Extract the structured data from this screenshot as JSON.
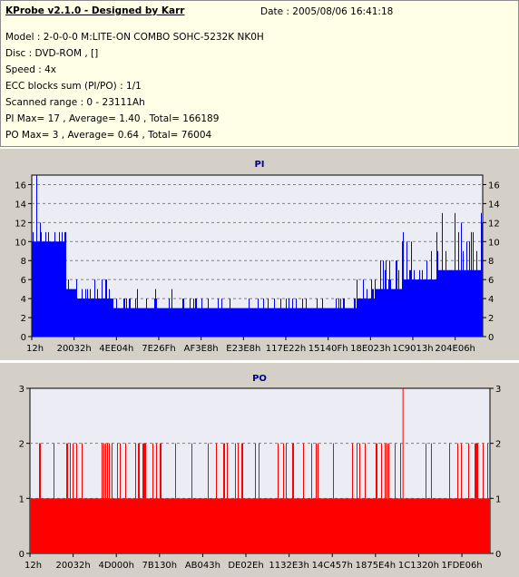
{
  "info": {
    "title": "KProbe v2.1.0 - Designed by Karr",
    "date": "Date : 2005/08/06 16:41:18",
    "lines": [
      "Model : 2-0-0-0 M:LITE-ON COMBO SOHC-5232K NK0H",
      "Disc : DVD-ROM ,  []",
      "Speed : 4x",
      "ECC blocks sum (PI/PO) : 1/1",
      "Scanned range : 0 - 23111Ah",
      "PI Max= 17 , Average= 1.40 , Total= 166189",
      "PO Max= 3 , Average= 0.64 , Total= 76004"
    ]
  },
  "colors": {
    "pi": "#0000ff",
    "po": "#ff0000",
    "grid": "#808080",
    "plot_bg": "#ececf4",
    "panel_bg": "#d4d0c8"
  },
  "chart_data": [
    {
      "type": "area",
      "title": "PI",
      "ylim": [
        0,
        17
      ],
      "yticks": [
        0,
        2,
        4,
        6,
        8,
        10,
        12,
        14,
        16
      ],
      "xticks": [
        "12h",
        "20032h",
        "4EE04h",
        "7E26Fh",
        "AF3E8h",
        "E23E8h",
        "117E22h",
        "15140Fh",
        "18E023h",
        "1C9013h",
        "204E06h"
      ],
      "x_range": [
        "12h",
        "23111Ah"
      ],
      "segments": [
        {
          "from": 0.0,
          "to": 0.075,
          "base": 10,
          "peak": 12,
          "max": 17
        },
        {
          "from": 0.075,
          "to": 0.09,
          "base": 5,
          "peak": 7
        },
        {
          "from": 0.09,
          "to": 0.18,
          "base": 4,
          "peak": 6
        },
        {
          "from": 0.18,
          "to": 0.32,
          "base": 3,
          "peak": 5
        },
        {
          "from": 0.32,
          "to": 0.72,
          "base": 3,
          "peak": 4
        },
        {
          "from": 0.72,
          "to": 0.76,
          "base": 4,
          "peak": 6
        },
        {
          "from": 0.76,
          "to": 0.82,
          "base": 5,
          "peak": 9
        },
        {
          "from": 0.82,
          "to": 0.9,
          "base": 6,
          "peak": 11
        },
        {
          "from": 0.9,
          "to": 1.0,
          "base": 7,
          "peak": 13
        }
      ],
      "grid": true
    },
    {
      "type": "area",
      "title": "PO",
      "ylim": [
        0,
        3
      ],
      "yticks": [
        0,
        1,
        2,
        3
      ],
      "xticks": [
        "12h",
        "20032h",
        "4D000h",
        "7B130h",
        "AB043h",
        "DE02Eh",
        "1132E3h",
        "14C457h",
        "1875E4h",
        "1C1320h",
        "1FDE06h"
      ],
      "x_range": [
        "12h",
        "23111Ah"
      ],
      "base": 1,
      "spike_density": 0.12,
      "peak_value": 3,
      "peak_at": 0.81,
      "grid": true
    }
  ]
}
